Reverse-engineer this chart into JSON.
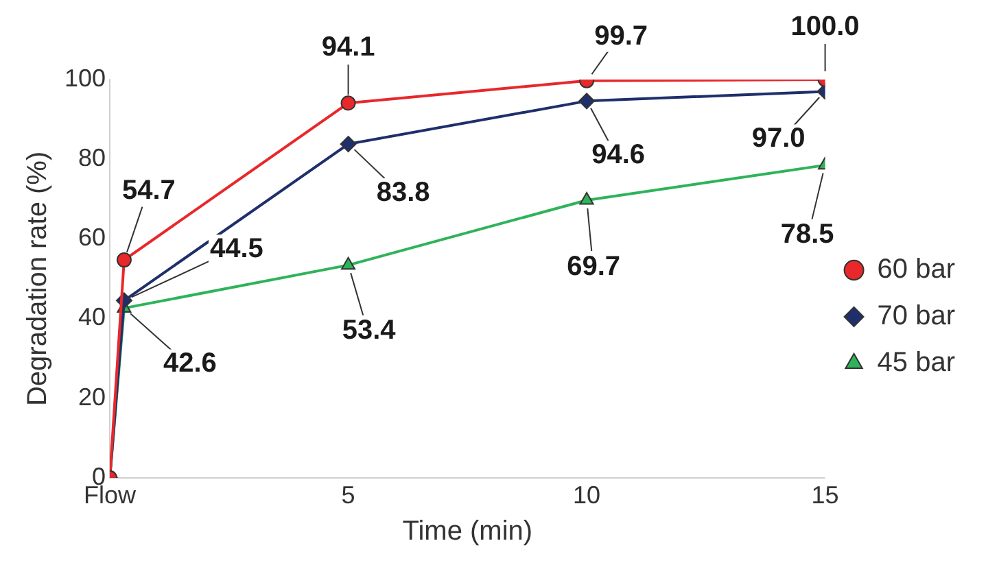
{
  "chart_data": {
    "type": "line",
    "xlabel": "Time (min)",
    "ylabel": "Degradation rate (%)",
    "x": [
      0,
      0.3,
      5,
      10,
      15
    ],
    "xlim": [
      0,
      15
    ],
    "xticks": [
      {
        "value": 0,
        "label": "Flow"
      },
      5,
      10,
      15
    ],
    "ylim": [
      0,
      100
    ],
    "yticks": [
      0,
      20,
      40,
      60,
      80,
      100
    ],
    "grid": false,
    "legend": "right",
    "line_style": "solid",
    "series": [
      {
        "name": "60 bar",
        "color": "#e8282b",
        "marker": "circle",
        "values": [
          0,
          54.7,
          94.1,
          99.7,
          100.0
        ],
        "value_labels": [
          null,
          "54.7",
          "94.1",
          "99.7",
          "100.0"
        ]
      },
      {
        "name": "70 bar",
        "color": "#1f2f6b",
        "marker": "diamond",
        "values": [
          0,
          44.5,
          83.8,
          94.6,
          97.0
        ],
        "value_labels": [
          null,
          "44.5",
          "83.8",
          "94.6",
          "97.0"
        ]
      },
      {
        "name": "45 bar",
        "color": "#2fb35a",
        "marker": "triangle",
        "values": [
          0,
          42.6,
          53.4,
          69.7,
          78.5
        ],
        "value_labels": [
          null,
          "42.6",
          "53.4",
          "69.7",
          "78.5"
        ]
      }
    ]
  }
}
